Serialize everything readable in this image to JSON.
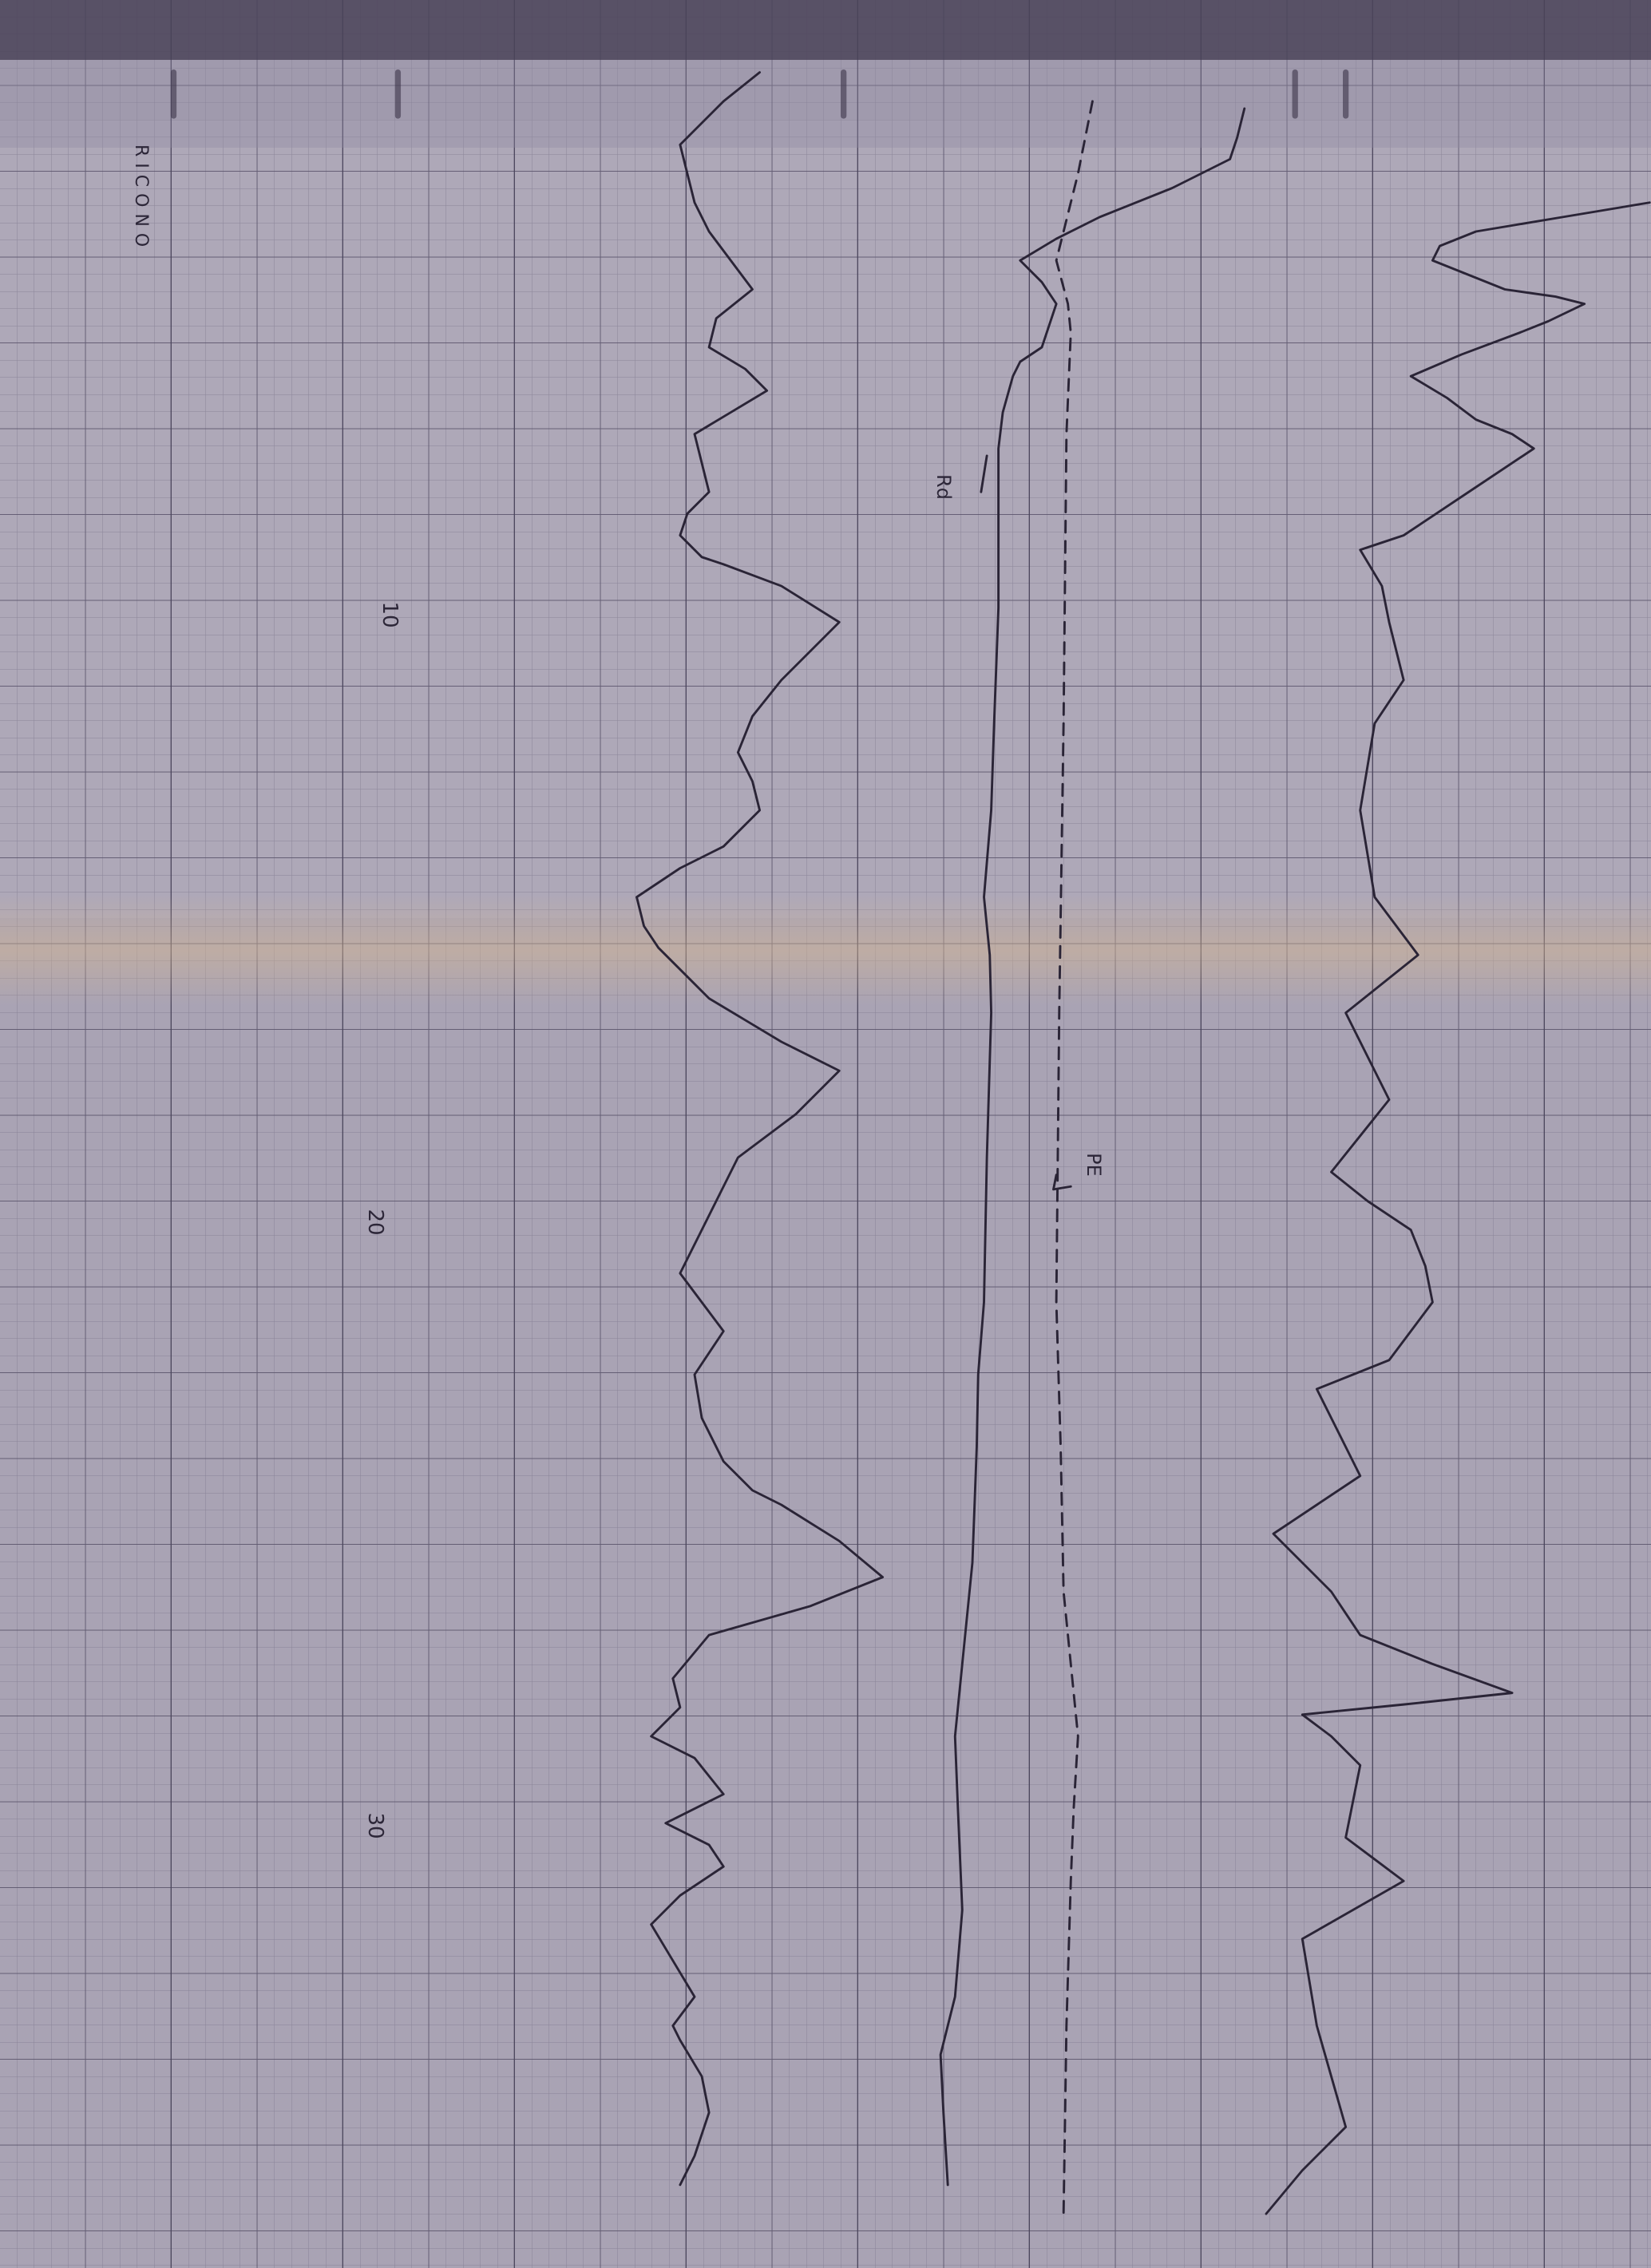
{
  "header": {
    "label": "RICONO"
  },
  "depth_labels": [
    "10",
    "20",
    "30"
  ],
  "annotations": [
    "Rd",
    "PE"
  ]
}
